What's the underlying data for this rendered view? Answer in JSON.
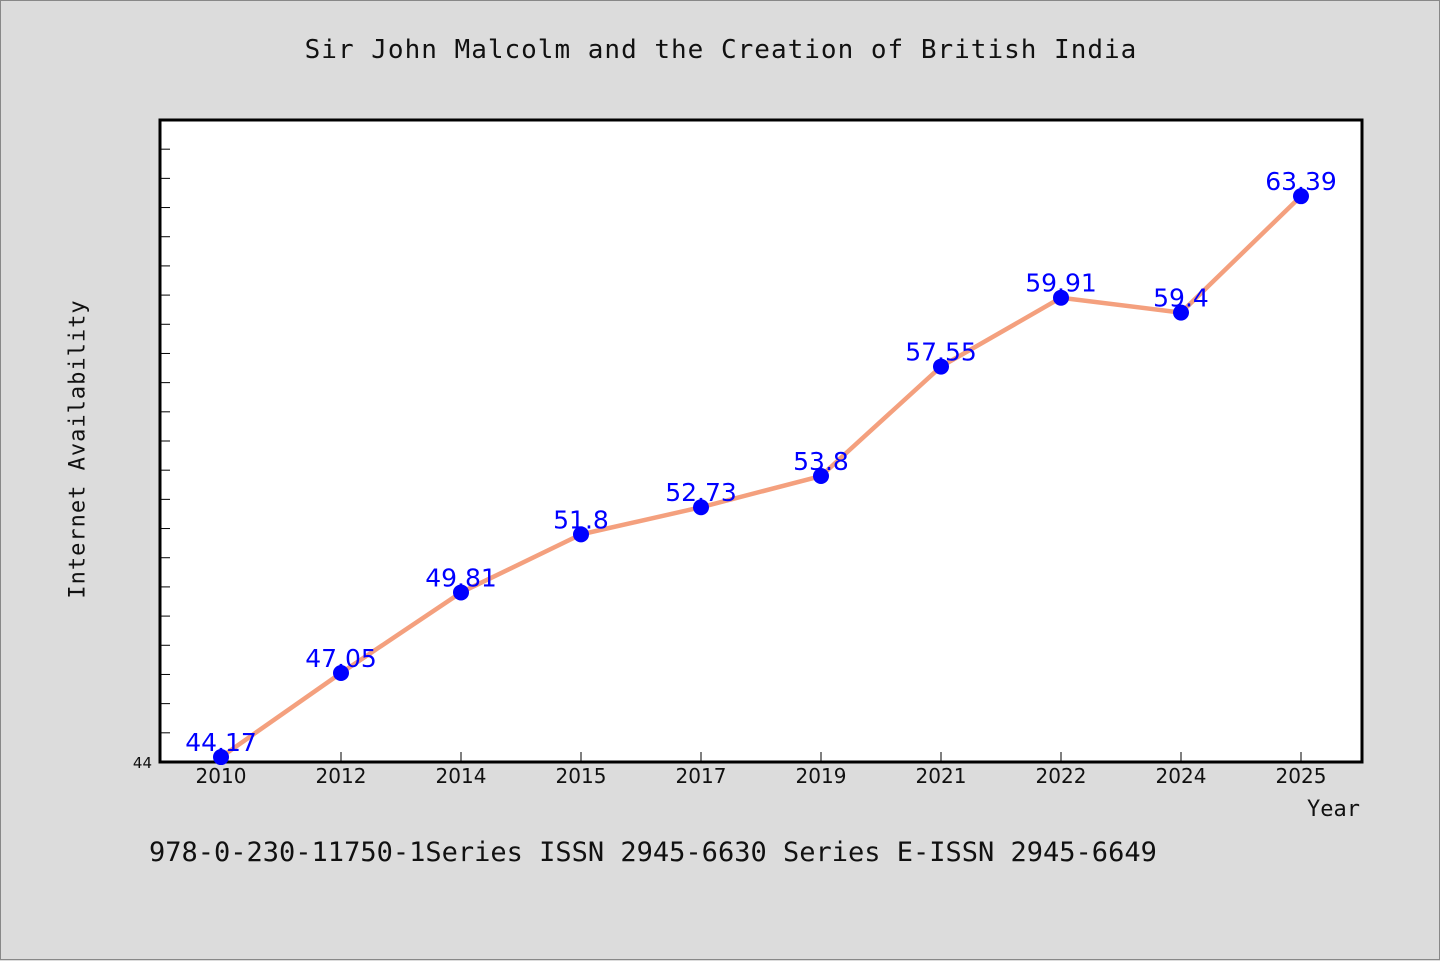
{
  "title": "Sir John Malcolm and the Creation of British India",
  "footer": "978-0-230-11750-1Series ISSN 2945-6630 Series E-ISSN 2945-6649",
  "colors": {
    "background": "#dcdcdc",
    "plot_background": "#ffffff",
    "line": "#f4a07e",
    "marker": "#0000ff",
    "data_label": "#0000ff"
  },
  "chart_data": {
    "type": "line",
    "xlabel": "Year",
    "ylabel": "Internet Availability",
    "categories": [
      "2010",
      "2012",
      "2014",
      "2015",
      "2017",
      "2019",
      "2021",
      "2022",
      "2024",
      "2025"
    ],
    "series": [
      {
        "values": [
          44.17,
          47.05,
          49.81,
          51.8,
          52.73,
          53.8,
          57.55,
          59.91,
          59.4,
          63.39
        ],
        "labels": [
          "44.17",
          "47.05",
          "49.81",
          "51.8",
          "52.73",
          "53.8",
          "57.55",
          "59.91",
          "59.4",
          "63.39"
        ]
      }
    ],
    "ylim": [
      44,
      66
    ],
    "ytick_labels": [
      "44"
    ],
    "grid": false,
    "legend": "none"
  }
}
